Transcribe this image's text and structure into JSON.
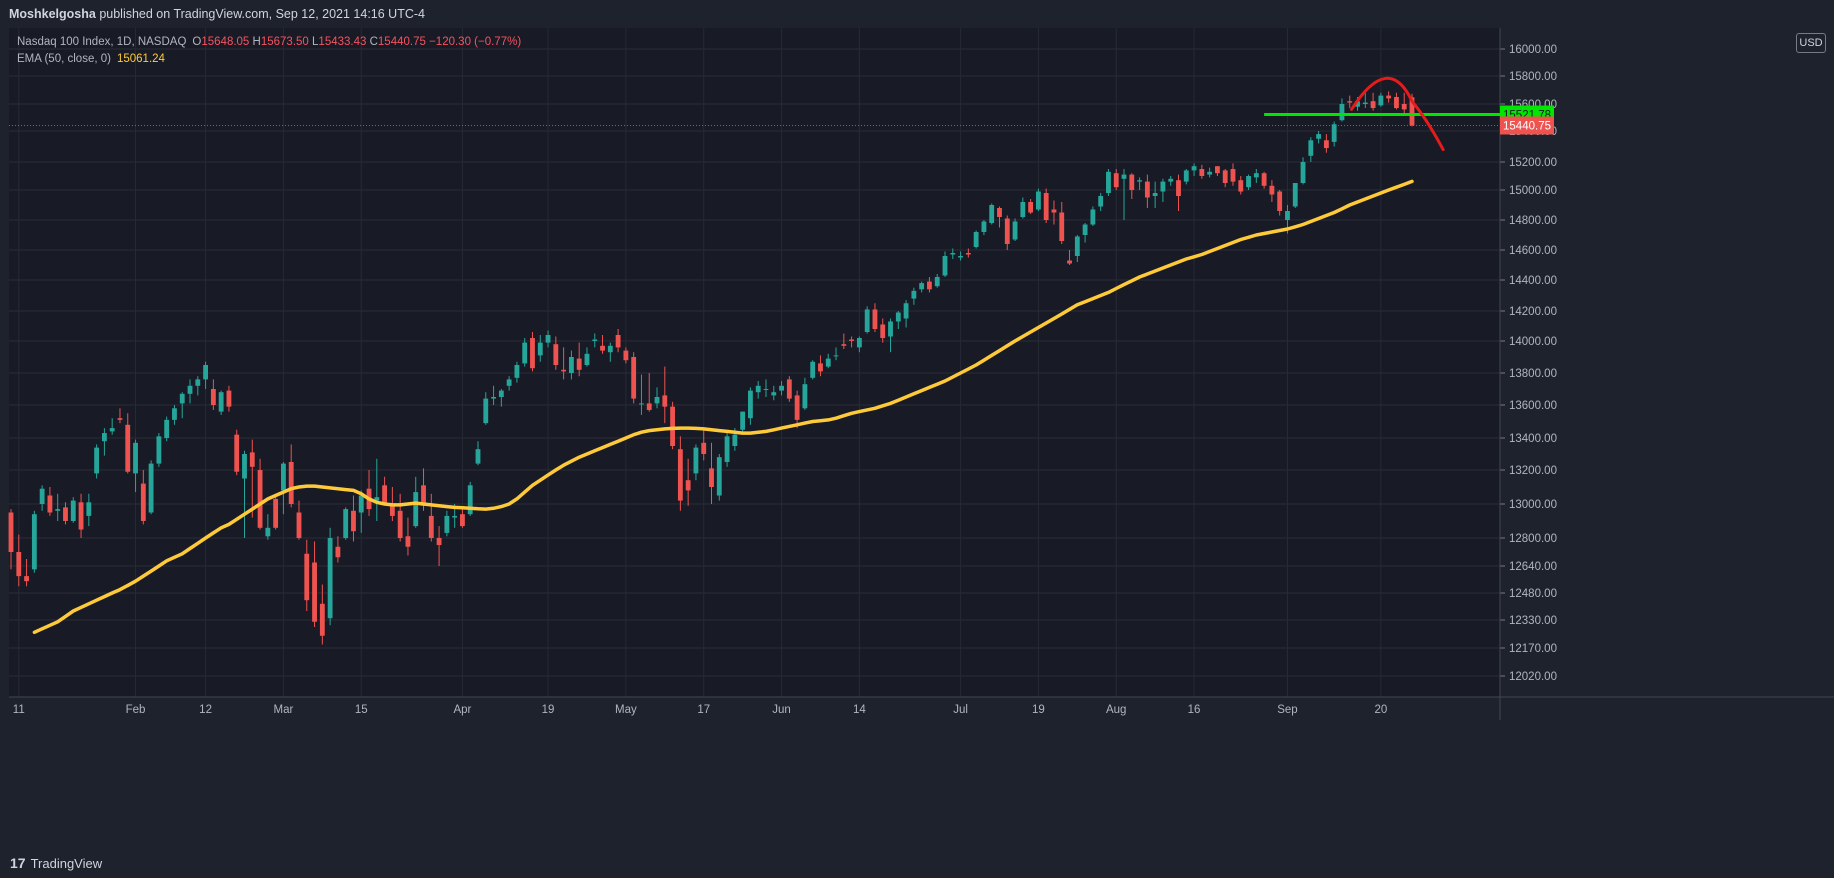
{
  "header": {
    "publisher": "Moshkelgosha",
    "published_text": "published on TradingView.com, Sep 12, 2021 14:16 UTC-4"
  },
  "legend": {
    "symbol": "Nasdaq 100 Index, 1D, NASDAQ",
    "open_label": "O",
    "open": "15648.05",
    "high_label": "H",
    "high": "15673.50",
    "low_label": "L",
    "low": "15433.43",
    "close_label": "C",
    "close": "15440.75",
    "change": "−120.30 (−0.77%)",
    "ema_label": "EMA (50, close, 0)",
    "ema_value": "15061.24"
  },
  "currency": "USD",
  "footer": {
    "logo_glyph": "17",
    "brand": "TradingView"
  },
  "colors": {
    "background": "#1e222d",
    "up": "#26a69a",
    "down": "#ef5350",
    "ema": "#ffca3a",
    "annotation_line": "#00e600",
    "annotation_curve": "#e81b1b"
  },
  "chart_data": {
    "type": "candlestick",
    "title": "Nasdaq 100 Index, 1D, NASDAQ",
    "ylim": [
      11920,
      16100
    ],
    "price_ticks": [
      16000,
      15800,
      15600,
      15400,
      15200,
      15000,
      14800,
      14600,
      14400,
      14200,
      14000,
      13800,
      13600,
      13400,
      13200,
      13000,
      12800,
      12640,
      12480,
      12330,
      12170,
      12020
    ],
    "x_labels": [
      {
        "label": "11",
        "index": 1
      },
      {
        "label": "Feb",
        "index": 16
      },
      {
        "label": "12",
        "index": 25
      },
      {
        "label": "Mar",
        "index": 35
      },
      {
        "label": "15",
        "index": 45
      },
      {
        "label": "Apr",
        "index": 58
      },
      {
        "label": "19",
        "index": 69
      },
      {
        "label": "May",
        "index": 79
      },
      {
        "label": "17",
        "index": 89
      },
      {
        "label": "Jun",
        "index": 99
      },
      {
        "label": "14",
        "index": 109
      },
      {
        "label": "Jul",
        "index": 122
      },
      {
        "label": "19",
        "index": 132
      },
      {
        "label": "Aug",
        "index": 142
      },
      {
        "label": "16",
        "index": 152
      },
      {
        "label": "Sep",
        "index": 164
      },
      {
        "label": "20",
        "index": 176
      }
    ],
    "candles": [
      [
        12950,
        12970,
        12620,
        12720
      ],
      [
        12720,
        12820,
        12520,
        12580
      ],
      [
        12580,
        12680,
        12520,
        12550
      ],
      [
        12620,
        12960,
        12600,
        12940
      ],
      [
        13000,
        13110,
        12960,
        13090
      ],
      [
        13050,
        13100,
        12930,
        12950
      ],
      [
        12960,
        13060,
        12900,
        12970
      ],
      [
        12980,
        13010,
        12880,
        12900
      ],
      [
        12900,
        13040,
        12890,
        13020
      ],
      [
        13010,
        13060,
        12800,
        12850
      ],
      [
        12930,
        13060,
        12870,
        13010
      ],
      [
        13180,
        13360,
        13150,
        13340
      ],
      [
        13380,
        13460,
        13290,
        13430
      ],
      [
        13440,
        13520,
        13420,
        13460
      ],
      [
        13520,
        13580,
        13490,
        13510
      ],
      [
        13480,
        13550,
        13180,
        13190
      ],
      [
        13180,
        13390,
        13070,
        13370
      ],
      [
        13120,
        13200,
        12880,
        12900
      ],
      [
        12950,
        13260,
        12940,
        13240
      ],
      [
        13240,
        13430,
        13220,
        13410
      ],
      [
        13400,
        13530,
        13380,
        13510
      ],
      [
        13510,
        13600,
        13480,
        13580
      ],
      [
        13610,
        13680,
        13520,
        13670
      ],
      [
        13670,
        13760,
        13610,
        13720
      ],
      [
        13720,
        13780,
        13660,
        13760
      ],
      [
        13760,
        13870,
        13700,
        13850
      ],
      [
        13700,
        13760,
        13570,
        13600
      ],
      [
        13560,
        13690,
        13540,
        13680
      ],
      [
        13690,
        13720,
        13560,
        13590
      ],
      [
        13420,
        13450,
        13170,
        13190
      ],
      [
        13150,
        13320,
        12800,
        13300
      ],
      [
        13310,
        13390,
        12920,
        13220
      ],
      [
        13200,
        13270,
        12850,
        12860
      ],
      [
        12810,
        12940,
        12790,
        12860
      ],
      [
        13030,
        13040,
        12850,
        12860
      ],
      [
        13080,
        13250,
        12940,
        13240
      ],
      [
        13250,
        13360,
        12980,
        13000
      ],
      [
        12950,
        13020,
        12790,
        12800
      ],
      [
        12710,
        12790,
        12380,
        12440
      ],
      [
        12660,
        12780,
        12290,
        12320
      ],
      [
        12420,
        12530,
        12190,
        12240
      ],
      [
        12340,
        12860,
        12300,
        12800
      ],
      [
        12750,
        12810,
        12660,
        12690
      ],
      [
        12800,
        12980,
        12790,
        12970
      ],
      [
        12960,
        13050,
        12780,
        12840
      ],
      [
        12950,
        13080,
        12830,
        13050
      ],
      [
        13090,
        13200,
        12930,
        12970
      ],
      [
        13020,
        13270,
        12900,
        13040
      ],
      [
        13110,
        13160,
        13000,
        13000
      ],
      [
        13000,
        13100,
        12900,
        12930
      ],
      [
        12960,
        13060,
        12780,
        12800
      ],
      [
        12810,
        12920,
        12700,
        12750
      ],
      [
        12870,
        13160,
        12860,
        13070
      ],
      [
        13110,
        13210,
        12960,
        12990
      ],
      [
        12930,
        13060,
        12780,
        12800
      ],
      [
        12800,
        12870,
        12640,
        12760
      ],
      [
        12830,
        12960,
        12810,
        12930
      ],
      [
        12920,
        13000,
        12860,
        12930
      ],
      [
        12940,
        12970,
        12860,
        12870
      ],
      [
        12940,
        13130,
        12930,
        13110
      ],
      [
        13240,
        13380,
        13230,
        13330
      ],
      [
        13490,
        13680,
        13480,
        13640
      ],
      [
        13640,
        13720,
        13600,
        13650
      ],
      [
        13650,
        13700,
        13590,
        13690
      ],
      [
        13720,
        13780,
        13690,
        13760
      ],
      [
        13770,
        13870,
        13740,
        13850
      ],
      [
        13860,
        14020,
        13840,
        13990
      ],
      [
        14020,
        14060,
        13810,
        13830
      ],
      [
        13910,
        14040,
        13870,
        13990
      ],
      [
        13990,
        14070,
        13960,
        14040
      ],
      [
        13980,
        14030,
        13820,
        13850
      ],
      [
        13820,
        13960,
        13760,
        13810
      ],
      [
        13800,
        13940,
        13760,
        13900
      ],
      [
        13890,
        13990,
        13780,
        13820
      ],
      [
        13850,
        13960,
        13840,
        13920
      ],
      [
        14000,
        14050,
        13960,
        14010
      ],
      [
        13970,
        14040,
        13920,
        13940
      ],
      [
        13930,
        13990,
        13870,
        13970
      ],
      [
        14040,
        14080,
        13930,
        13960
      ],
      [
        13940,
        13960,
        13860,
        13880
      ],
      [
        13900,
        13930,
        13610,
        13640
      ],
      [
        13610,
        13790,
        13540,
        13610
      ],
      [
        13610,
        13800,
        13560,
        13570
      ],
      [
        13610,
        13710,
        13580,
        13650
      ],
      [
        13660,
        13840,
        13490,
        13590
      ],
      [
        13590,
        13620,
        13330,
        13350
      ],
      [
        13330,
        13410,
        12960,
        13020
      ],
      [
        13140,
        13270,
        12990,
        13080
      ],
      [
        13180,
        13360,
        13140,
        13340
      ],
      [
        13370,
        13460,
        13260,
        13300
      ],
      [
        13210,
        13370,
        13000,
        13100
      ],
      [
        13050,
        13300,
        13020,
        13280
      ],
      [
        13250,
        13440,
        13220,
        13410
      ],
      [
        13350,
        13460,
        13320,
        13420
      ],
      [
        13450,
        13560,
        13440,
        13560
      ],
      [
        13520,
        13710,
        13480,
        13690
      ],
      [
        13680,
        13750,
        13640,
        13720
      ],
      [
        13700,
        13760,
        13650,
        13700
      ],
      [
        13660,
        13720,
        13630,
        13680
      ],
      [
        13690,
        13750,
        13660,
        13720
      ],
      [
        13760,
        13780,
        13620,
        13640
      ],
      [
        13660,
        13690,
        13460,
        13510
      ],
      [
        13580,
        13770,
        13570,
        13730
      ],
      [
        13770,
        13880,
        13760,
        13870
      ],
      [
        13860,
        13910,
        13780,
        13810
      ],
      [
        13840,
        13920,
        13830,
        13890
      ],
      [
        13910,
        13960,
        13880,
        13910
      ],
      [
        13980,
        14050,
        13950,
        13970
      ],
      [
        14010,
        14030,
        13960,
        14000
      ],
      [
        13960,
        14030,
        13930,
        14020
      ],
      [
        14060,
        14230,
        14050,
        14210
      ],
      [
        14210,
        14250,
        14060,
        14080
      ],
      [
        14110,
        14150,
        13990,
        14020
      ],
      [
        14030,
        14150,
        13930,
        14130
      ],
      [
        14130,
        14200,
        14080,
        14190
      ],
      [
        14150,
        14270,
        14090,
        14250
      ],
      [
        14280,
        14350,
        14240,
        14330
      ],
      [
        14340,
        14390,
        14320,
        14380
      ],
      [
        14390,
        14420,
        14320,
        14340
      ],
      [
        14360,
        14440,
        14350,
        14420
      ],
      [
        14430,
        14590,
        14420,
        14560
      ],
      [
        14570,
        14610,
        14540,
        14580
      ],
      [
        14550,
        14590,
        14530,
        14560
      ],
      [
        14580,
        14610,
        14550,
        14570
      ],
      [
        14620,
        14730,
        14610,
        14720
      ],
      [
        14720,
        14800,
        14700,
        14790
      ],
      [
        14780,
        14910,
        14770,
        14900
      ],
      [
        14880,
        14890,
        14750,
        14820
      ],
      [
        14810,
        14830,
        14600,
        14640
      ],
      [
        14670,
        14810,
        14660,
        14790
      ],
      [
        14820,
        14950,
        14810,
        14920
      ],
      [
        14920,
        14940,
        14840,
        14850
      ],
      [
        14870,
        15010,
        14860,
        14990
      ],
      [
        14980,
        15010,
        14780,
        14800
      ],
      [
        14870,
        14930,
        14770,
        14850
      ],
      [
        14850,
        14920,
        14640,
        14660
      ],
      [
        14530,
        14600,
        14500,
        14510
      ],
      [
        14560,
        14700,
        14520,
        14690
      ],
      [
        14700,
        14780,
        14650,
        14770
      ],
      [
        14770,
        14890,
        14760,
        14870
      ],
      [
        14890,
        14980,
        14860,
        14960
      ],
      [
        14980,
        15150,
        14960,
        15130
      ],
      [
        15120,
        15150,
        15000,
        15020
      ],
      [
        15080,
        15150,
        14800,
        15110
      ],
      [
        15110,
        15120,
        14940,
        15000
      ],
      [
        15060,
        15090,
        15000,
        15070
      ],
      [
        15060,
        15110,
        14880,
        14950
      ],
      [
        14960,
        15060,
        14880,
        14980
      ],
      [
        14990,
        15080,
        14920,
        15060
      ],
      [
        15060,
        15100,
        15030,
        15080
      ],
      [
        15070,
        15110,
        14860,
        14960
      ],
      [
        15060,
        15150,
        15040,
        15140
      ],
      [
        15140,
        15190,
        15100,
        15170
      ],
      [
        15150,
        15180,
        15080,
        15100
      ],
      [
        15110,
        15160,
        15090,
        15130
      ],
      [
        15170,
        15170,
        15100,
        15120
      ],
      [
        15140,
        15150,
        15020,
        15050
      ],
      [
        15150,
        15190,
        15030,
        15060
      ],
      [
        15070,
        15100,
        14970,
        14990
      ],
      [
        15020,
        15110,
        15000,
        15100
      ],
      [
        15090,
        15150,
        15050,
        15120
      ],
      [
        15120,
        15130,
        15010,
        15030
      ],
      [
        15030,
        15070,
        14920,
        14970
      ],
      [
        14990,
        15000,
        14830,
        14860
      ],
      [
        14800,
        14900,
        14710,
        14860
      ],
      [
        14890,
        15050,
        14880,
        15050
      ],
      [
        15050,
        15230,
        15040,
        15200
      ],
      [
        15240,
        15360,
        15200,
        15340
      ],
      [
        15350,
        15400,
        15320,
        15380
      ],
      [
        15340,
        15380,
        15260,
        15290
      ],
      [
        15330,
        15470,
        15300,
        15450
      ],
      [
        15480,
        15640,
        15470,
        15600
      ],
      [
        15620,
        15660,
        15570,
        15610
      ],
      [
        15580,
        15650,
        15550,
        15620
      ],
      [
        15600,
        15680,
        15570,
        15610
      ],
      [
        15620,
        15680,
        15550,
        15570
      ],
      [
        15590,
        15680,
        15580,
        15660
      ],
      [
        15660,
        15690,
        15610,
        15640
      ],
      [
        15650,
        15680,
        15560,
        15570
      ],
      [
        15600,
        15680,
        15520,
        15560
      ],
      [
        15648.05,
        15673.5,
        15433.43,
        15440.75
      ]
    ],
    "ema50": [
      12260,
      12280,
      12300,
      12320,
      12350,
      12380,
      12400,
      12420,
      12440,
      12460,
      12480,
      12500,
      12525,
      12550,
      12580,
      12610,
      12640,
      12670,
      12690,
      12710,
      12740,
      12770,
      12800,
      12830,
      12860,
      12880,
      12910,
      12940,
      12970,
      13000,
      13030,
      13050,
      13070,
      13090,
      13100,
      13105,
      13105,
      13100,
      13095,
      13090,
      13085,
      13080,
      13060,
      13030,
      13010,
      13000,
      12995,
      12995,
      13000,
      13005,
      13000,
      12995,
      12990,
      12985,
      12980,
      12978,
      12975,
      12972,
      12970,
      12975,
      12985,
      13000,
      13030,
      13070,
      13110,
      13140,
      13170,
      13200,
      13230,
      13255,
      13280,
      13300,
      13320,
      13340,
      13360,
      13380,
      13400,
      13420,
      13435,
      13445,
      13450,
      13455,
      13458,
      13460,
      13460,
      13458,
      13455,
      13450,
      13445,
      13440,
      13435,
      13430,
      13430,
      13435,
      13440,
      13450,
      13460,
      13470,
      13480,
      13490,
      13500,
      13505,
      13510,
      13520,
      13535,
      13550,
      13560,
      13570,
      13580,
      13595,
      13610,
      13630,
      13650,
      13670,
      13690,
      13710,
      13730,
      13750,
      13775,
      13800,
      13825,
      13850,
      13880,
      13910,
      13940,
      13970,
      14000,
      14030,
      14060,
      14090,
      14120,
      14150,
      14180,
      14210,
      14240,
      14260,
      14280,
      14300,
      14320,
      14345,
      14370,
      14395,
      14420,
      14440,
      14460,
      14480,
      14500,
      14520,
      14540,
      14555,
      14570,
      14590,
      14610,
      14630,
      14650,
      14670,
      14685,
      14700,
      14710,
      14720,
      14730,
      14740,
      14755,
      14770,
      14790,
      14810,
      14830,
      14850,
      14875,
      14900,
      14920,
      14940,
      14960,
      14980,
      15000,
      15020,
      15040,
      15061.24
    ],
    "last_price": "15440.75",
    "annotations": {
      "horizontal_line": {
        "price": 15521.78,
        "label": "15521.78",
        "from_index": 161
      },
      "last_price_label": "15440.75"
    }
  }
}
